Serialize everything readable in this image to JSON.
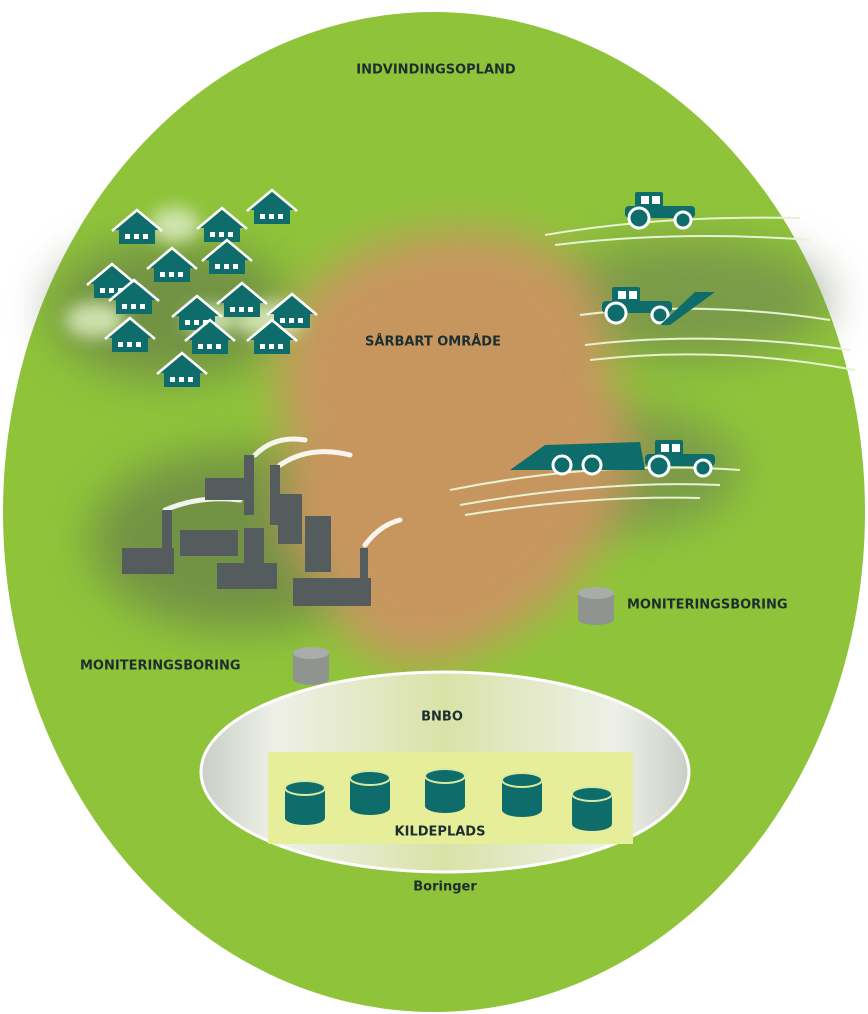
{
  "labels": {
    "catchment": "INDVINDINGSOPLAND",
    "vulnerable_area": "SÅRBART OMRÅDE",
    "monitoring_right": "MONITERINGSBORING",
    "monitoring_left": "MONITERINGSBORING",
    "bnbo": "BNBO",
    "wellfield": "KILDEPLADS",
    "wells": "Boringer"
  }
}
